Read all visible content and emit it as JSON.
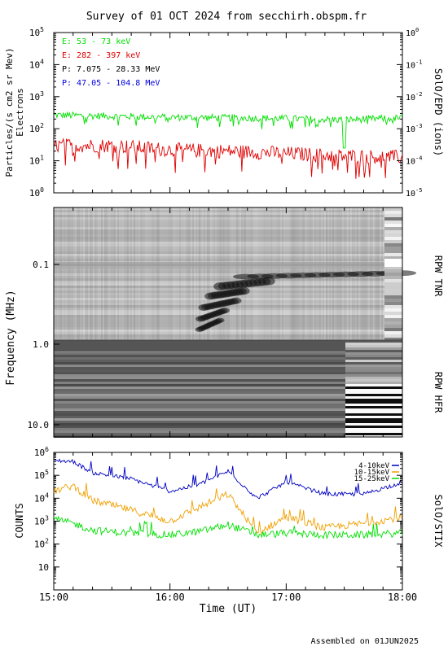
{
  "header": {
    "title": "Survey of 01 OCT 2024 from secchirh.obspm.fr"
  },
  "footer": {
    "assembled": "Assembled on 01JUN2025"
  },
  "colors": {
    "green": "#00e000",
    "red": "#e00000",
    "black": "#000000",
    "blue": "#0000e0",
    "orange": "#f0a000",
    "stix_blue": "#0000c0"
  },
  "chart_data": [
    {
      "type": "line",
      "instrument": "SolO/EPD (ions)",
      "ylabel": "Particles/(s cm2 sr Mev)",
      "ylabel2": "Electrons",
      "yscale": "log",
      "ylim": [
        1,
        100000
      ],
      "y_ticks": [
        "10^0",
        "10^1",
        "10^2",
        "10^3",
        "10^4",
        "10^5"
      ],
      "y2_ticks": [
        "10^-5",
        "10^-4",
        "10^-3",
        "10^-2",
        "10^-1",
        "10^0"
      ],
      "x_time_range": [
        "15:00",
        "18:00"
      ],
      "legend": [
        {
          "label": "E: 53 - 73 keV",
          "color": "#00e000"
        },
        {
          "label": "E: 282 - 397 keV",
          "color": "#e00000"
        },
        {
          "label": "P: 7.075 - 28.33 MeV",
          "color": "#000000"
        },
        {
          "label": "P: 47.05 - 104.8 MeV",
          "color": "#0000e0"
        }
      ],
      "series": [
        {
          "name": "E: 53 - 73 keV",
          "color": "#00e000",
          "time": [
            "15:00",
            "15:30",
            "16:00",
            "16:30",
            "17:00",
            "17:30",
            "18:00"
          ],
          "values": [
            280,
            260,
            240,
            230,
            220,
            200,
            230
          ]
        },
        {
          "name": "E: 282 - 397 keV",
          "color": "#e00000",
          "time": [
            "15:00",
            "15:30",
            "16:00",
            "16:30",
            "17:00",
            "17:30",
            "18:00"
          ],
          "values": [
            30,
            30,
            22,
            20,
            17,
            14,
            13
          ]
        }
      ]
    },
    {
      "type": "heatmap",
      "instrument": "RPW TNR",
      "ylabel": "Frequency (MHz)",
      "y_ticks": [
        "0.1",
        "1.0"
      ],
      "x_time_range": [
        "15:00",
        "18:00"
      ]
    },
    {
      "type": "heatmap",
      "instrument": "RPW HFR",
      "y_ticks": [
        "1.0",
        "10.0"
      ],
      "x_time_range": [
        "15:00",
        "18:00"
      ]
    },
    {
      "type": "line",
      "instrument": "SolO/STIX",
      "ylabel": "COUNTS",
      "yscale": "log",
      "ylim": [
        1,
        1000000
      ],
      "y_ticks": [
        "10",
        "10^2",
        "10^3",
        "10^4",
        "10^5",
        "10^6"
      ],
      "xlabel": "Time (UT)",
      "x_ticks": [
        "15:00",
        "16:00",
        "17:00",
        "18:00"
      ],
      "legend": [
        {
          "label": "4-10keV",
          "color": "#0000c0"
        },
        {
          "label": "10-15keV",
          "color": "#f0a000"
        },
        {
          "label": "15-25keV",
          "color": "#00e000"
        }
      ],
      "series": [
        {
          "name": "4-10keV",
          "color": "#0000c0",
          "time": [
            "15:00",
            "15:10",
            "15:20",
            "15:40",
            "16:00",
            "16:15",
            "16:30",
            "16:45",
            "17:00",
            "17:20",
            "17:40",
            "18:00"
          ],
          "values": [
            450000,
            400000,
            130000,
            70000,
            20000,
            40000,
            150000,
            10000,
            50000,
            15000,
            15000,
            50000
          ]
        },
        {
          "name": "10-15keV",
          "color": "#f0a000",
          "time": [
            "15:00",
            "15:10",
            "15:20",
            "15:40",
            "16:00",
            "16:15",
            "16:30",
            "16:45",
            "17:00",
            "17:20",
            "17:40",
            "18:00"
          ],
          "values": [
            20000,
            35000,
            8000,
            3000,
            1000,
            4000,
            15000,
            300,
            1500,
            500,
            800,
            1500
          ]
        },
        {
          "name": "15-25keV",
          "color": "#00e000",
          "time": [
            "15:00",
            "15:10",
            "15:20",
            "15:40",
            "16:00",
            "16:15",
            "16:30",
            "16:45",
            "17:00",
            "17:20",
            "17:40",
            "18:00"
          ],
          "values": [
            1200,
            800,
            400,
            300,
            250,
            350,
            700,
            250,
            300,
            250,
            250,
            300
          ]
        }
      ]
    }
  ]
}
